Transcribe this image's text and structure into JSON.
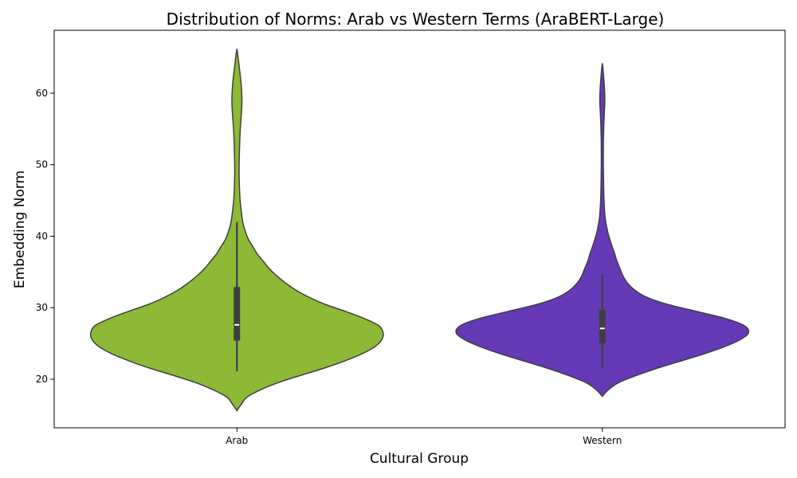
{
  "chart_data": {
    "type": "violin",
    "title": "Distribution of Norms: Arab vs Western Terms (AraBERT-Large)",
    "xlabel": "Cultural Group",
    "ylabel": "Embedding Norm",
    "ylim": [
      13.2,
      68.8
    ],
    "yticks": [
      20,
      30,
      40,
      50,
      60
    ],
    "grid": false,
    "categories": [
      "Arab",
      "Western"
    ],
    "series": [
      {
        "name": "Arab",
        "color": "#8CBA36",
        "min": 21.1,
        "q1": 25.4,
        "median": 27.6,
        "q3": 32.9,
        "whisker_high": 42.0,
        "kde_range": [
          15.6,
          66.2
        ],
        "kde_profile": [
          [
            15.6,
            0.0
          ],
          [
            16.5,
            0.03
          ],
          [
            17.5,
            0.07
          ],
          [
            18.5,
            0.16
          ],
          [
            19.5,
            0.28
          ],
          [
            20.5,
            0.43
          ],
          [
            21.5,
            0.59
          ],
          [
            22.5,
            0.73
          ],
          [
            23.5,
            0.85
          ],
          [
            24.5,
            0.94
          ],
          [
            25.5,
            0.99
          ],
          [
            26.5,
            1.0
          ],
          [
            27.5,
            0.97
          ],
          [
            28.5,
            0.87
          ],
          [
            29.5,
            0.74
          ],
          [
            30.5,
            0.6
          ],
          [
            31.5,
            0.49
          ],
          [
            32.5,
            0.4
          ],
          [
            33.5,
            0.33
          ],
          [
            34.5,
            0.27
          ],
          [
            35.5,
            0.22
          ],
          [
            36.5,
            0.18
          ],
          [
            37.5,
            0.14
          ],
          [
            38.5,
            0.11
          ],
          [
            39.5,
            0.08
          ],
          [
            40.5,
            0.06
          ],
          [
            42.0,
            0.04
          ],
          [
            43.5,
            0.03
          ],
          [
            45.0,
            0.022
          ],
          [
            47.0,
            0.017
          ],
          [
            49.0,
            0.015
          ],
          [
            51.0,
            0.016
          ],
          [
            53.0,
            0.019
          ],
          [
            55.0,
            0.023
          ],
          [
            57.0,
            0.03
          ],
          [
            58.5,
            0.034
          ],
          [
            60.0,
            0.033
          ],
          [
            61.5,
            0.028
          ],
          [
            63.0,
            0.02
          ],
          [
            64.5,
            0.011
          ],
          [
            65.5,
            0.005
          ],
          [
            66.2,
            0.0
          ]
        ]
      },
      {
        "name": "Western",
        "color": "#6639B7",
        "min": 21.5,
        "q1": 25.0,
        "median": 27.1,
        "q3": 29.7,
        "whisker_high": 34.6,
        "kde_range": [
          17.6,
          64.2
        ],
        "kde_profile": [
          [
            17.6,
            0.0
          ],
          [
            18.5,
            0.04
          ],
          [
            19.5,
            0.11
          ],
          [
            20.5,
            0.23
          ],
          [
            21.5,
            0.37
          ],
          [
            22.5,
            0.53
          ],
          [
            23.5,
            0.69
          ],
          [
            24.5,
            0.83
          ],
          [
            25.5,
            0.94
          ],
          [
            26.5,
            1.0
          ],
          [
            27.5,
            0.97
          ],
          [
            28.5,
            0.84
          ],
          [
            29.5,
            0.64
          ],
          [
            30.5,
            0.44
          ],
          [
            31.5,
            0.3
          ],
          [
            32.5,
            0.22
          ],
          [
            33.5,
            0.17
          ],
          [
            34.5,
            0.14
          ],
          [
            35.5,
            0.12
          ],
          [
            36.5,
            0.1
          ],
          [
            37.5,
            0.085
          ],
          [
            38.5,
            0.068
          ],
          [
            39.5,
            0.052
          ],
          [
            40.5,
            0.038
          ],
          [
            41.5,
            0.028
          ],
          [
            42.5,
            0.02
          ],
          [
            44.0,
            0.014
          ],
          [
            46.0,
            0.01
          ],
          [
            48.0,
            0.008
          ],
          [
            50.0,
            0.007
          ],
          [
            52.0,
            0.007
          ],
          [
            54.0,
            0.008
          ],
          [
            56.0,
            0.011
          ],
          [
            57.5,
            0.014
          ],
          [
            58.5,
            0.017
          ],
          [
            59.5,
            0.017
          ],
          [
            60.5,
            0.015
          ],
          [
            61.5,
            0.012
          ],
          [
            62.5,
            0.008
          ],
          [
            63.5,
            0.004
          ],
          [
            64.2,
            0.0
          ]
        ]
      }
    ]
  }
}
